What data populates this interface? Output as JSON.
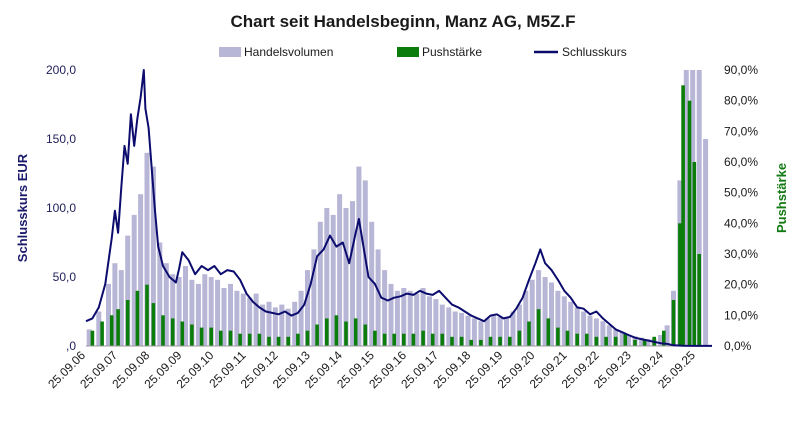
{
  "chart_data": {
    "type": "bar+line",
    "title": "Chart seit Handelsbeginn, Manz AG, M5Z.F",
    "ylabel_left": "Schlusskurs EUR",
    "ylabel_right": "Pushstärke",
    "ylim_left": [
      0,
      200
    ],
    "ylim_right": [
      0,
      90
    ],
    "left_ticks": [
      {
        "value": 0,
        "label": ",0"
      },
      {
        "value": 50,
        "label": "50,0"
      },
      {
        "value": 100,
        "label": "100,0"
      },
      {
        "value": 150,
        "label": "150,0"
      },
      {
        "value": 200,
        "label": "200,0"
      }
    ],
    "right_ticks": [
      {
        "value": 0,
        "label": "0,0%"
      },
      {
        "value": 10,
        "label": "10,0%"
      },
      {
        "value": 20,
        "label": "20,0%"
      },
      {
        "value": 30,
        "label": "30,0%"
      },
      {
        "value": 40,
        "label": "40,0%"
      },
      {
        "value": 50,
        "label": "50,0%"
      },
      {
        "value": 60,
        "label": "60,0%"
      },
      {
        "value": 70,
        "label": "70,0%"
      },
      {
        "value": 80,
        "label": "80,0%"
      },
      {
        "value": 90,
        "label": "90,0%"
      }
    ],
    "x_start": 2006,
    "x_end": 2025.5,
    "x_ticks": [
      {
        "value": 2006,
        "label": "25.09.06"
      },
      {
        "value": 2007,
        "label": "25.09.07"
      },
      {
        "value": 2008,
        "label": "25.09.08"
      },
      {
        "value": 2009,
        "label": "25.09.09"
      },
      {
        "value": 2010,
        "label": "25.09.10"
      },
      {
        "value": 2011,
        "label": "25.09.11"
      },
      {
        "value": 2012,
        "label": "25.09.12"
      },
      {
        "value": 2013,
        "label": "25.09.13"
      },
      {
        "value": 2014,
        "label": "25.09.14"
      },
      {
        "value": 2015,
        "label": "25.09.15"
      },
      {
        "value": 2016,
        "label": "25.09.16"
      },
      {
        "value": 2017,
        "label": "25.09.17"
      },
      {
        "value": 2018,
        "label": "25.09.18"
      },
      {
        "value": 2019,
        "label": "25.09.19"
      },
      {
        "value": 2020,
        "label": "25.09.20"
      },
      {
        "value": 2021,
        "label": "25.09.21"
      },
      {
        "value": 2022,
        "label": "25.09.22"
      },
      {
        "value": 2023,
        "label": "25.09.23"
      },
      {
        "value": 2024,
        "label": "25.09.24"
      },
      {
        "value": 2025,
        "label": "25.09.25"
      }
    ],
    "legend": [
      {
        "name": "Handelsvolumen",
        "symbol": "bar",
        "color": "#b8b6d6"
      },
      {
        "name": "Pushstärke",
        "symbol": "bar",
        "color": "#0a7d0a"
      },
      {
        "name": "Schlusskurs",
        "symbol": "line",
        "color": "#0c0c6e"
      }
    ],
    "series": [
      {
        "name": "Schlusskurs",
        "axis": "left",
        "color": "#0c0c6e",
        "points": [
          [
            2006.0,
            18
          ],
          [
            2006.2,
            20
          ],
          [
            2006.4,
            28
          ],
          [
            2006.6,
            45
          ],
          [
            2006.8,
            78
          ],
          [
            2006.9,
            98
          ],
          [
            2007.0,
            82
          ],
          [
            2007.1,
            115
          ],
          [
            2007.2,
            145
          ],
          [
            2007.3,
            132
          ],
          [
            2007.4,
            168
          ],
          [
            2007.5,
            145
          ],
          [
            2007.6,
            165
          ],
          [
            2007.7,
            180
          ],
          [
            2007.8,
            200
          ],
          [
            2007.85,
            172
          ],
          [
            2007.95,
            158
          ],
          [
            2008.05,
            128
          ],
          [
            2008.15,
            98
          ],
          [
            2008.25,
            72
          ],
          [
            2008.4,
            58
          ],
          [
            2008.6,
            50
          ],
          [
            2008.8,
            46
          ],
          [
            2008.9,
            56
          ],
          [
            2009.0,
            68
          ],
          [
            2009.2,
            62
          ],
          [
            2009.4,
            52
          ],
          [
            2009.6,
            58
          ],
          [
            2009.8,
            55
          ],
          [
            2010.0,
            58
          ],
          [
            2010.2,
            52
          ],
          [
            2010.4,
            55
          ],
          [
            2010.6,
            54
          ],
          [
            2010.8,
            48
          ],
          [
            2011.0,
            38
          ],
          [
            2011.2,
            32
          ],
          [
            2011.4,
            28
          ],
          [
            2011.6,
            25
          ],
          [
            2011.8,
            24
          ],
          [
            2012.0,
            23
          ],
          [
            2012.2,
            25
          ],
          [
            2012.4,
            22
          ],
          [
            2012.6,
            24
          ],
          [
            2012.8,
            30
          ],
          [
            2013.0,
            45
          ],
          [
            2013.2,
            65
          ],
          [
            2013.4,
            70
          ],
          [
            2013.6,
            80
          ],
          [
            2013.8,
            72
          ],
          [
            2014.0,
            75
          ],
          [
            2014.2,
            60
          ],
          [
            2014.4,
            82
          ],
          [
            2014.5,
            92
          ],
          [
            2014.6,
            78
          ],
          [
            2014.8,
            50
          ],
          [
            2015.0,
            45
          ],
          [
            2015.2,
            35
          ],
          [
            2015.4,
            33
          ],
          [
            2015.6,
            35
          ],
          [
            2015.8,
            36
          ],
          [
            2016.0,
            38
          ],
          [
            2016.2,
            37
          ],
          [
            2016.4,
            40
          ],
          [
            2016.6,
            38
          ],
          [
            2016.8,
            37
          ],
          [
            2017.0,
            40
          ],
          [
            2017.2,
            35
          ],
          [
            2017.4,
            30
          ],
          [
            2017.6,
            28
          ],
          [
            2017.8,
            25
          ],
          [
            2018.0,
            22
          ],
          [
            2018.2,
            20
          ],
          [
            2018.4,
            18
          ],
          [
            2018.6,
            22
          ],
          [
            2018.8,
            23
          ],
          [
            2019.0,
            20
          ],
          [
            2019.2,
            21
          ],
          [
            2019.4,
            27
          ],
          [
            2019.6,
            35
          ],
          [
            2019.8,
            48
          ],
          [
            2020.0,
            60
          ],
          [
            2020.15,
            70
          ],
          [
            2020.3,
            60
          ],
          [
            2020.5,
            55
          ],
          [
            2020.7,
            48
          ],
          [
            2020.9,
            40
          ],
          [
            2021.1,
            35
          ],
          [
            2021.3,
            28
          ],
          [
            2021.5,
            27
          ],
          [
            2021.7,
            23
          ],
          [
            2021.9,
            25
          ],
          [
            2022.1,
            20
          ],
          [
            2022.3,
            16
          ],
          [
            2022.5,
            12
          ],
          [
            2022.7,
            10
          ],
          [
            2022.9,
            8
          ],
          [
            2023.1,
            6
          ],
          [
            2023.3,
            5
          ],
          [
            2023.5,
            4
          ],
          [
            2023.7,
            3
          ],
          [
            2023.9,
            2
          ],
          [
            2024.1,
            1.5
          ],
          [
            2024.3,
            0.5
          ],
          [
            2024.6,
            0.2
          ],
          [
            2025.0,
            0.1
          ],
          [
            2025.5,
            0.1
          ]
        ]
      },
      {
        "name": "Handelsvolumen",
        "axis": "volume",
        "color": "#b8b6d6",
        "points": [
          [
            2006.1,
            12
          ],
          [
            2006.4,
            25
          ],
          [
            2006.7,
            45
          ],
          [
            2006.9,
            60
          ],
          [
            2007.1,
            55
          ],
          [
            2007.3,
            80
          ],
          [
            2007.5,
            95
          ],
          [
            2007.7,
            110
          ],
          [
            2007.9,
            140
          ],
          [
            2008.1,
            130
          ],
          [
            2008.3,
            75
          ],
          [
            2008.5,
            60
          ],
          [
            2008.7,
            52
          ],
          [
            2008.9,
            50
          ],
          [
            2009.1,
            58
          ],
          [
            2009.3,
            48
          ],
          [
            2009.5,
            45
          ],
          [
            2009.7,
            52
          ],
          [
            2009.9,
            50
          ],
          [
            2010.1,
            48
          ],
          [
            2010.3,
            42
          ],
          [
            2010.5,
            45
          ],
          [
            2010.7,
            40
          ],
          [
            2010.9,
            38
          ],
          [
            2011.1,
            35
          ],
          [
            2011.3,
            38
          ],
          [
            2011.5,
            30
          ],
          [
            2011.7,
            32
          ],
          [
            2011.9,
            28
          ],
          [
            2012.1,
            30
          ],
          [
            2012.3,
            27
          ],
          [
            2012.5,
            32
          ],
          [
            2012.7,
            40
          ],
          [
            2012.9,
            55
          ],
          [
            2013.1,
            70
          ],
          [
            2013.3,
            90
          ],
          [
            2013.5,
            100
          ],
          [
            2013.7,
            95
          ],
          [
            2013.9,
            110
          ],
          [
            2014.1,
            100
          ],
          [
            2014.3,
            105
          ],
          [
            2014.5,
            130
          ],
          [
            2014.7,
            120
          ],
          [
            2014.9,
            90
          ],
          [
            2015.1,
            70
          ],
          [
            2015.3,
            55
          ],
          [
            2015.5,
            45
          ],
          [
            2015.7,
            40
          ],
          [
            2015.9,
            42
          ],
          [
            2016.1,
            40
          ],
          [
            2016.3,
            38
          ],
          [
            2016.5,
            42
          ],
          [
            2016.7,
            36
          ],
          [
            2016.9,
            34
          ],
          [
            2017.1,
            30
          ],
          [
            2017.3,
            28
          ],
          [
            2017.5,
            25
          ],
          [
            2017.7,
            24
          ],
          [
            2017.9,
            22
          ],
          [
            2018.1,
            20
          ],
          [
            2018.3,
            18
          ],
          [
            2018.5,
            20
          ],
          [
            2018.7,
            22
          ],
          [
            2018.9,
            21
          ],
          [
            2019.1,
            20
          ],
          [
            2019.3,
            25
          ],
          [
            2019.5,
            30
          ],
          [
            2019.7,
            40
          ],
          [
            2019.9,
            48
          ],
          [
            2020.1,
            55
          ],
          [
            2020.3,
            50
          ],
          [
            2020.5,
            46
          ],
          [
            2020.7,
            40
          ],
          [
            2020.9,
            36
          ],
          [
            2021.1,
            32
          ],
          [
            2021.3,
            28
          ],
          [
            2021.5,
            25
          ],
          [
            2021.7,
            22
          ],
          [
            2021.9,
            20
          ],
          [
            2022.1,
            18
          ],
          [
            2022.3,
            15
          ],
          [
            2022.5,
            12
          ],
          [
            2022.7,
            10
          ],
          [
            2022.9,
            8
          ],
          [
            2023.1,
            7
          ],
          [
            2023.3,
            6
          ],
          [
            2023.5,
            5
          ],
          [
            2023.7,
            5
          ],
          [
            2023.9,
            8
          ],
          [
            2024.1,
            15
          ],
          [
            2024.3,
            40
          ],
          [
            2024.5,
            120
          ],
          [
            2024.7,
            200
          ],
          [
            2024.9,
            200
          ],
          [
            2025.1,
            200
          ],
          [
            2025.3,
            150
          ]
        ]
      },
      {
        "name": "Pushstärke",
        "axis": "right",
        "color": "#0a7d0a",
        "points": [
          [
            2006.2,
            5
          ],
          [
            2006.5,
            8
          ],
          [
            2006.8,
            10
          ],
          [
            2007.0,
            12
          ],
          [
            2007.3,
            15
          ],
          [
            2007.6,
            18
          ],
          [
            2007.9,
            20
          ],
          [
            2008.1,
            14
          ],
          [
            2008.4,
            10
          ],
          [
            2008.7,
            9
          ],
          [
            2009.0,
            8
          ],
          [
            2009.3,
            7
          ],
          [
            2009.6,
            6
          ],
          [
            2009.9,
            6
          ],
          [
            2010.2,
            5
          ],
          [
            2010.5,
            5
          ],
          [
            2010.8,
            4
          ],
          [
            2011.1,
            4
          ],
          [
            2011.4,
            4
          ],
          [
            2011.7,
            3
          ],
          [
            2012.0,
            3
          ],
          [
            2012.3,
            3
          ],
          [
            2012.6,
            4
          ],
          [
            2012.9,
            5
          ],
          [
            2013.2,
            7
          ],
          [
            2013.5,
            9
          ],
          [
            2013.8,
            10
          ],
          [
            2014.1,
            8
          ],
          [
            2014.4,
            9
          ],
          [
            2014.7,
            7
          ],
          [
            2015.0,
            5
          ],
          [
            2015.3,
            4
          ],
          [
            2015.6,
            4
          ],
          [
            2015.9,
            4
          ],
          [
            2016.2,
            4
          ],
          [
            2016.5,
            5
          ],
          [
            2016.8,
            4
          ],
          [
            2017.1,
            4
          ],
          [
            2017.4,
            3
          ],
          [
            2017.7,
            3
          ],
          [
            2018.0,
            2
          ],
          [
            2018.3,
            2
          ],
          [
            2018.6,
            3
          ],
          [
            2018.9,
            3
          ],
          [
            2019.2,
            3
          ],
          [
            2019.5,
            5
          ],
          [
            2019.8,
            8
          ],
          [
            2020.1,
            12
          ],
          [
            2020.4,
            9
          ],
          [
            2020.7,
            6
          ],
          [
            2021.0,
            5
          ],
          [
            2021.3,
            4
          ],
          [
            2021.6,
            4
          ],
          [
            2021.9,
            3
          ],
          [
            2022.2,
            3
          ],
          [
            2022.5,
            3
          ],
          [
            2022.8,
            4
          ],
          [
            2023.1,
            2
          ],
          [
            2023.4,
            2
          ],
          [
            2023.7,
            3
          ],
          [
            2024.0,
            5
          ],
          [
            2024.3,
            15
          ],
          [
            2024.5,
            40
          ],
          [
            2024.6,
            85
          ],
          [
            2024.8,
            80
          ],
          [
            2024.95,
            60
          ],
          [
            2025.1,
            30
          ]
        ]
      }
    ]
  }
}
